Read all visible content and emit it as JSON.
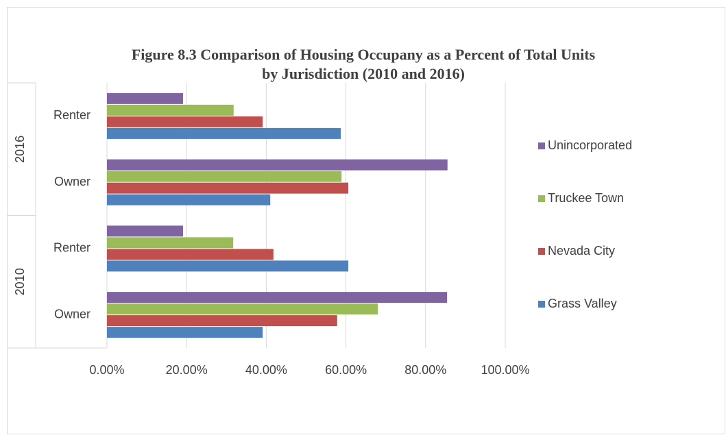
{
  "chart_data": {
    "type": "hbar",
    "title": "Figure 8.3 Comparison of Housing Occupany as a Percent of Total Units",
    "subtitle": "by Jurisdiction (2010 and 2016)",
    "groups": [
      {
        "name": "2010",
        "categories": [
          "Owner",
          "Renter"
        ]
      },
      {
        "name": "2016",
        "categories": [
          "Owner",
          "Renter"
        ]
      }
    ],
    "series": [
      {
        "name": "Grass Valley",
        "color": "#4f81bd",
        "values": [
          39.1,
          60.6,
          41.0,
          58.7
        ]
      },
      {
        "name": "Nevada City",
        "color": "#c0504d",
        "values": [
          57.8,
          41.8,
          60.6,
          39.1
        ]
      },
      {
        "name": "Truckee Town",
        "color": "#9bbb59",
        "values": [
          68.0,
          31.7,
          58.9,
          31.8
        ]
      },
      {
        "name": "Unincorporated",
        "color": "#8064a2",
        "values": [
          85.4,
          19.1,
          85.5,
          19.1
        ]
      }
    ],
    "xlim": [
      0,
      100
    ],
    "xticks": [
      {
        "value": 0,
        "label": "0.00%"
      },
      {
        "value": 20,
        "label": "20.00%"
      },
      {
        "value": 40,
        "label": "40.00%"
      },
      {
        "value": 60,
        "label": "60.00%"
      },
      {
        "value": 80,
        "label": "80.00%"
      },
      {
        "value": 100,
        "label": "100.00%"
      }
    ],
    "grid": true,
    "legend": "right"
  }
}
